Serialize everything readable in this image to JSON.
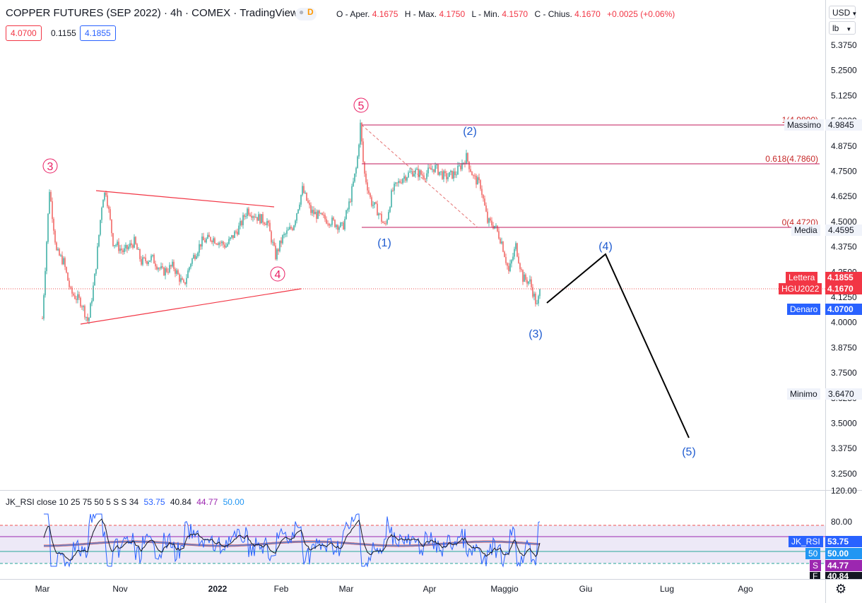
{
  "header": {
    "title": "COPPER FUTURES (SEP 2022) · 4h · COMEX · TradingView",
    "badge_letter": "D",
    "ohlc": [
      {
        "k": "O - Aper.",
        "v": "4.1675"
      },
      {
        "k": "H - Max.",
        "v": "4.1750"
      },
      {
        "k": "L - Min.",
        "v": "4.1570"
      },
      {
        "k": "C - Chius.",
        "v": "4.1670"
      },
      {
        "k": "",
        "v": "+0.0025 (+0.06%)"
      }
    ],
    "sell_price": "4.0700",
    "spread": "0.1155",
    "buy_price": "4.1855"
  },
  "controls": {
    "currency": "USD",
    "unit": "lb"
  },
  "price_axis": [
    "5.3750",
    "5.2500",
    "5.1250",
    "5.0000",
    "4.8750",
    "4.7500",
    "4.6250",
    "4.5000",
    "4.3750",
    "4.2500",
    "4.1250",
    "4.0000",
    "3.8750",
    "3.7500",
    "3.6250",
    "3.5000",
    "3.3750",
    "3.2500"
  ],
  "rsi_axis": [
    "120.00",
    "80.00"
  ],
  "time_axis": [
    "Mar",
    "Nov",
    "2022",
    "Feb",
    "Mar",
    "Apr",
    "Maggio",
    "Giu",
    "Lug",
    "Ago"
  ],
  "levels": {
    "massimo_label": "Massimo",
    "massimo_value": "4.9845",
    "fib_618": "0.618(4.7860)",
    "fib_1": "1(4.9800)",
    "fib_0": "0(4.4720)",
    "media_label": "Media",
    "media_value": "4.4595",
    "minimo_label": "Minimo",
    "minimo_value": "3.6470"
  },
  "price_tags": {
    "lettera_label": "Lettera",
    "lettera_value": "4.1855",
    "symbol_label": "HGU2022",
    "symbol_value": "4.1670",
    "denaro_label": "Denaro",
    "denaro_value": "4.0700"
  },
  "waves": {
    "major": [
      "3",
      "4",
      "5"
    ],
    "minor": [
      "(1)",
      "(2)",
      "(3)",
      "(4)",
      "(5)"
    ]
  },
  "rsi": {
    "title": "JK_RSI close 10 25 75 50 5 S S 34",
    "values": [
      "53.75",
      "40.84",
      "44.77",
      "50.00"
    ],
    "tags": [
      {
        "label": "JK_RSI",
        "value": "53.75",
        "color": "#2962ff"
      },
      {
        "label": "50",
        "value": "50.00",
        "color": "#2196f3"
      },
      {
        "label": "S",
        "value": "44.77",
        "color": "#9c27b0"
      },
      {
        "label": "F",
        "value": "40.84",
        "color": "#131722"
      }
    ]
  },
  "colors": {
    "up": "#26a69a",
    "down": "#ef5350",
    "wave_major": "#e91e63",
    "wave_minor": "#1e5bd0",
    "level": "#d32f2f"
  }
}
